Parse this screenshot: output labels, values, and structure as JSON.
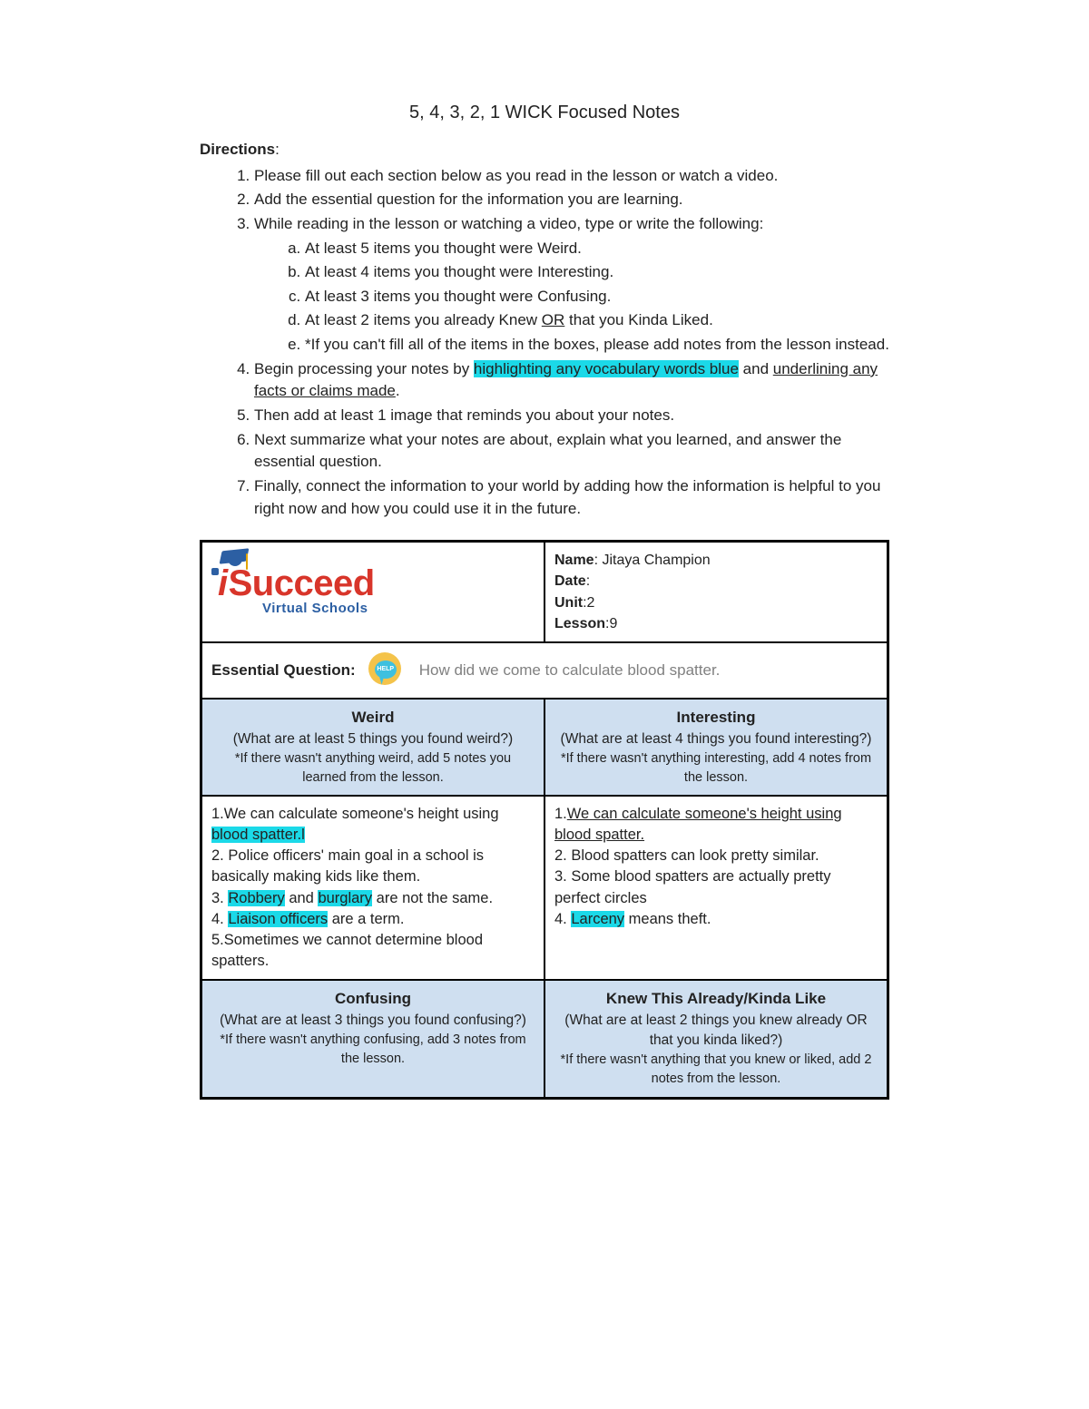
{
  "title": "5, 4, 3, 2, 1 WICK Focused Notes",
  "directions_label": "Directions",
  "directions": {
    "d1": "Please fill out each section below as you read in the lesson or watch a video.",
    "d2": "Add the essential question for the information you are learning.",
    "d3_intro": "While reading in the lesson or watching a video, type or write the following:",
    "d3a": "At least 5 items you thought were Weird.",
    "d3b": "At least 4 items you thought were Interesting.",
    "d3c": "At least 3 items you thought were Confusing.",
    "d3d_pre": "At least 2 items you already Knew ",
    "d3d_or": "OR",
    "d3d_post": " that you Kinda Liked.",
    "d3e": "*If you can't fill all of the items in the boxes, please add notes from the lesson instead.",
    "d4_pre": "Begin processing your notes by ",
    "d4_hl": "highlighting any vocabulary words blue",
    "d4_mid": " and ",
    "d4_ul": "underlining any facts or claims made",
    "d4_post": ".",
    "d5": "Then add at least 1 image that reminds you about your notes.",
    "d6": "Next summarize what your notes are about, explain what you learned, and answer the essential question.",
    "d7": "Finally, connect the information to your world by adding how the information is helpful to you right now and how you could use it in the future."
  },
  "logo": {
    "text": "Succeed",
    "sub": "Virtual Schools"
  },
  "info": {
    "name_label": "Name",
    "name_value": ": Jitaya Champion",
    "date_label": "Date",
    "date_value": ":",
    "unit_label": "Unit",
    "unit_value": ":2",
    "lesson_label": "Lesson",
    "lesson_value": ":9"
  },
  "eq": {
    "label": "Essential Question",
    "help": "HELP",
    "text": "How did we come to calculate blood spatter."
  },
  "headers": {
    "weird": {
      "title": "Weird",
      "sub": "(What are at least 5 things you found weird?)",
      "note": "*If there wasn't anything weird, add 5 notes you learned from the lesson."
    },
    "interesting": {
      "title": "Interesting",
      "sub": "(What are at least 4 things you found interesting?)",
      "note": "*If there wasn't anything interesting, add 4 notes from the lesson."
    },
    "confusing": {
      "title": "Confusing",
      "sub": "(What are at least 3 things you found confusing?)",
      "note": "*If there wasn't anything confusing, add 3 notes from the lesson."
    },
    "knew": {
      "title": "Knew This Already/Kinda Like",
      "sub": "(What are at least 2 things you knew already OR that you kinda liked?)",
      "note": "*If there wasn't anything that you knew or liked, add 2 notes from the lesson."
    }
  },
  "weird": {
    "l1a": "1.We can calculate someone's height using ",
    "l1b": "blood spatter.l",
    "l2": "2. Police officers' main goal in a school is basically making kids like them.",
    "l3a": "3. ",
    "l3b": "Robbery",
    "l3c": " and ",
    "l3d": "burglary",
    "l3e": " are not the same.",
    "l4a": "4. ",
    "l4b": "Liaison officers",
    "l4c": " are a term.",
    "l5": "5.Sometimes we cannot determine blood spatters."
  },
  "interesting": {
    "l1a": "1.",
    "l1b": "We can calculate someone's height using blood spatter.",
    "l2": "2. Blood spatters can look pretty similar.",
    "l3": "3. Some blood spatters are actually pretty perfect circles",
    "l4a": "4. ",
    "l4b": "Larceny",
    "l4c": " means theft."
  }
}
